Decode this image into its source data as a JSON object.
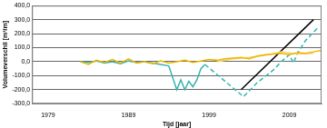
{
  "chart_data": {
    "type": "line",
    "x_label": "Tijd [jaar]",
    "y_label": "Volumeverschil [m³/m]",
    "xlim": [
      1977,
      2013
    ],
    "xticks": [
      1979,
      1989,
      1999,
      2009
    ],
    "ylim": [
      -300,
      400
    ],
    "yticks": [
      {
        "value": -300,
        "label": "-300,0"
      },
      {
        "value": -200,
        "label": "-200,0"
      },
      {
        "value": -100,
        "label": "-100,0"
      },
      {
        "value": 0,
        "label": "0,0"
      },
      {
        "value": 100,
        "label": "100,0"
      },
      {
        "value": 200,
        "label": "200,0"
      },
      {
        "value": 300,
        "label": "300,0"
      },
      {
        "value": 400,
        "label": "400,0"
      }
    ],
    "grid": true,
    "series": [
      {
        "color": "#f0b400",
        "line_style": "solid",
        "x": [
          1983,
          1984,
          1985,
          1986,
          1987,
          1988,
          1989,
          1990,
          1991,
          1992,
          1993,
          1994,
          1995,
          1996,
          1997,
          1998,
          1999,
          2000,
          2001,
          2002,
          2003,
          2004,
          2005,
          2006,
          2007,
          2008,
          2009,
          2010,
          2011,
          2012,
          2013
        ],
        "values": [
          0,
          -20,
          10,
          -5,
          15,
          -10,
          20,
          -10,
          0,
          -15,
          5,
          -10,
          0,
          10,
          -5,
          5,
          15,
          10,
          20,
          25,
          30,
          20,
          40,
          50,
          55,
          60,
          50,
          65,
          60,
          70,
          80
        ]
      },
      {
        "color": "#f5d76e",
        "line_style": "solid",
        "x": [
          2000,
          2002,
          2004,
          2006,
          2008,
          2010,
          2012
        ],
        "values": [
          0,
          20,
          30,
          45,
          70,
          55,
          60
        ]
      },
      {
        "color": "#33b5b0",
        "line_style": "solid",
        "x": [
          1983,
          1984,
          1985,
          1986,
          1987,
          1988,
          1989,
          1990,
          1991,
          1992,
          1993,
          1994,
          1995,
          1995.5,
          1996,
          1996.5,
          1997,
          1997.5,
          1998,
          1998.5
        ],
        "values": [
          0,
          -5,
          5,
          -10,
          0,
          -15,
          5,
          -5,
          0,
          -10,
          -20,
          -30,
          -200,
          -130,
          -200,
          -140,
          -180,
          -130,
          -50,
          -20
        ]
      },
      {
        "color": "#33b5b0",
        "line_style": "dashed",
        "x": [
          1998.5,
          2003.3,
          2005,
          2007,
          2008,
          2009,
          2009.5,
          2010,
          2011,
          2012.5
        ],
        "values": [
          -20,
          -250,
          -150,
          -60,
          0,
          50,
          -10,
          60,
          150,
          240
        ]
      },
      {
        "color": "#000000",
        "line_style": "solid",
        "x": [
          2003,
          2012
        ],
        "values": [
          -200,
          300
        ]
      }
    ]
  }
}
